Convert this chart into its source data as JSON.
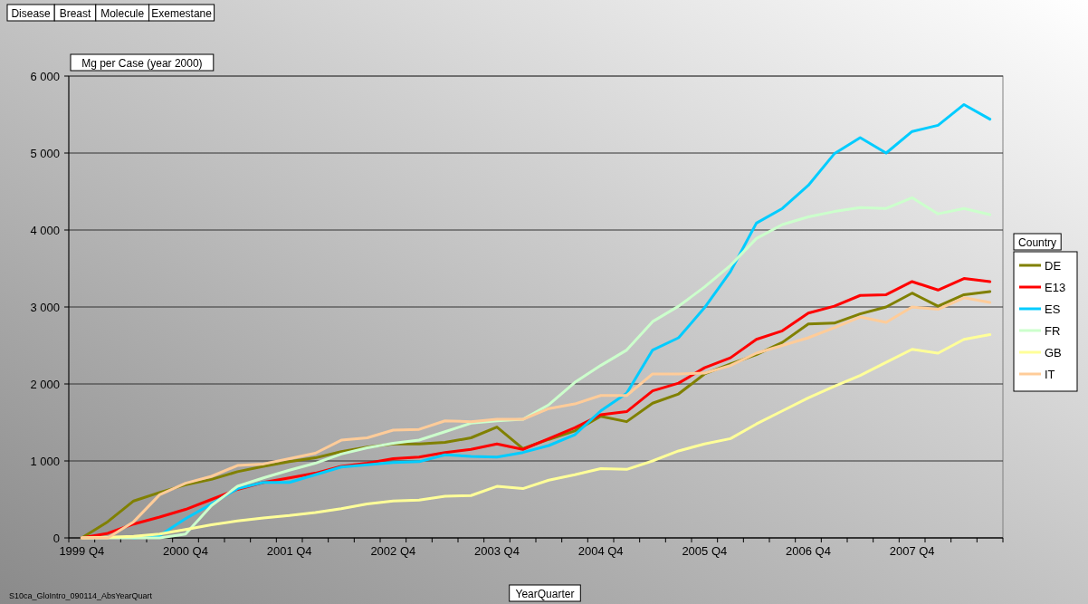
{
  "chart_data": {
    "type": "line",
    "annotations": [
      "Disease",
      "Breast",
      "Molecule",
      "Exemestane",
      "S10ca_GloIntro_090114_AbsYearQuart"
    ],
    "ylabel": "Mg per Case (year 2000)",
    "xlabel": "YearQuarter",
    "legend_title": "Country",
    "categories": [
      "1999 Q4",
      null,
      null,
      null,
      "2000 Q4",
      null,
      null,
      null,
      "2001 Q4",
      null,
      null,
      null,
      "2002 Q4",
      null,
      null,
      null,
      "2003 Q4",
      null,
      null,
      null,
      "2004 Q4",
      null,
      null,
      null,
      "2005 Q4",
      null,
      null,
      null,
      "2006 Q4",
      null,
      null,
      null,
      "2007 Q4",
      null,
      null,
      null
    ],
    "series": [
      {
        "name": "DE",
        "color": "#808000",
        "values": [
          0,
          210,
          480,
          590,
          690,
          760,
          860,
          930,
          990,
          1040,
          1120,
          1180,
          1220,
          1220,
          1240,
          1300,
          1440,
          1160,
          1280,
          1390,
          1580,
          1510,
          1750,
          1870,
          2130,
          2260,
          2380,
          2540,
          2780,
          2790,
          2910,
          3000,
          3180,
          3010,
          3160,
          3200
        ]
      },
      {
        "name": "E13",
        "color": "#ff0000",
        "values": [
          0,
          60,
          180,
          270,
          370,
          500,
          630,
          720,
          780,
          840,
          930,
          970,
          1030,
          1050,
          1110,
          1150,
          1220,
          1150,
          1290,
          1430,
          1600,
          1640,
          1910,
          2010,
          2210,
          2340,
          2580,
          2690,
          2920,
          3010,
          3150,
          3160,
          3330,
          3220,
          3370,
          3330
        ]
      },
      {
        "name": "ES",
        "color": "#00ccff",
        "values": [
          null,
          null,
          0,
          30,
          250,
          440,
          640,
          720,
          720,
          820,
          920,
          950,
          980,
          990,
          1080,
          1060,
          1050,
          1110,
          1200,
          1340,
          1650,
          1880,
          2440,
          2600,
          2990,
          3460,
          4090,
          4280,
          4580,
          4990,
          5200,
          5000,
          5280,
          5360,
          5630,
          5440
        ]
      },
      {
        "name": "FR",
        "color": "#ccffcc",
        "values": [
          0,
          0,
          0,
          0,
          50,
          420,
          670,
          780,
          880,
          970,
          1090,
          1170,
          1230,
          1270,
          1380,
          1490,
          1520,
          1540,
          1730,
          2020,
          2240,
          2440,
          2810,
          3010,
          3260,
          3540,
          3890,
          4070,
          4170,
          4240,
          4290,
          4280,
          4420,
          4210,
          4280,
          4200
        ]
      },
      {
        "name": "GB",
        "color": "#ffff99",
        "values": [
          0,
          10,
          20,
          50,
          110,
          170,
          220,
          260,
          290,
          330,
          380,
          440,
          480,
          490,
          540,
          550,
          670,
          640,
          750,
          820,
          900,
          890,
          1000,
          1130,
          1220,
          1290,
          1480,
          1650,
          1820,
          1970,
          2110,
          2280,
          2450,
          2400,
          2580,
          2640
        ]
      },
      {
        "name": "IT",
        "color": "#ffcc99",
        "values": [
          0,
          0,
          210,
          560,
          710,
          800,
          940,
          960,
          1030,
          1100,
          1270,
          1300,
          1400,
          1410,
          1520,
          1510,
          1540,
          1540,
          1680,
          1740,
          1850,
          1850,
          2130,
          2130,
          2140,
          2240,
          2400,
          2500,
          2600,
          2730,
          2870,
          2800,
          3000,
          2970,
          3120,
          3060
        ]
      }
    ],
    "ylim": [
      0,
      6000
    ],
    "yticks": [
      0,
      {
        "value": 1000,
        "label": "1 000"
      },
      {
        "value": 2000,
        "label": "2 000"
      },
      {
        "value": 3000,
        "label": "3 000"
      },
      {
        "value": 4000,
        "label": "4 000"
      },
      {
        "value": 5000,
        "label": "5 000"
      },
      {
        "value": 6000,
        "label": "6 000"
      }
    ],
    "grid": "y",
    "legend": "right",
    "marker": "none",
    "line_style": "solid"
  }
}
